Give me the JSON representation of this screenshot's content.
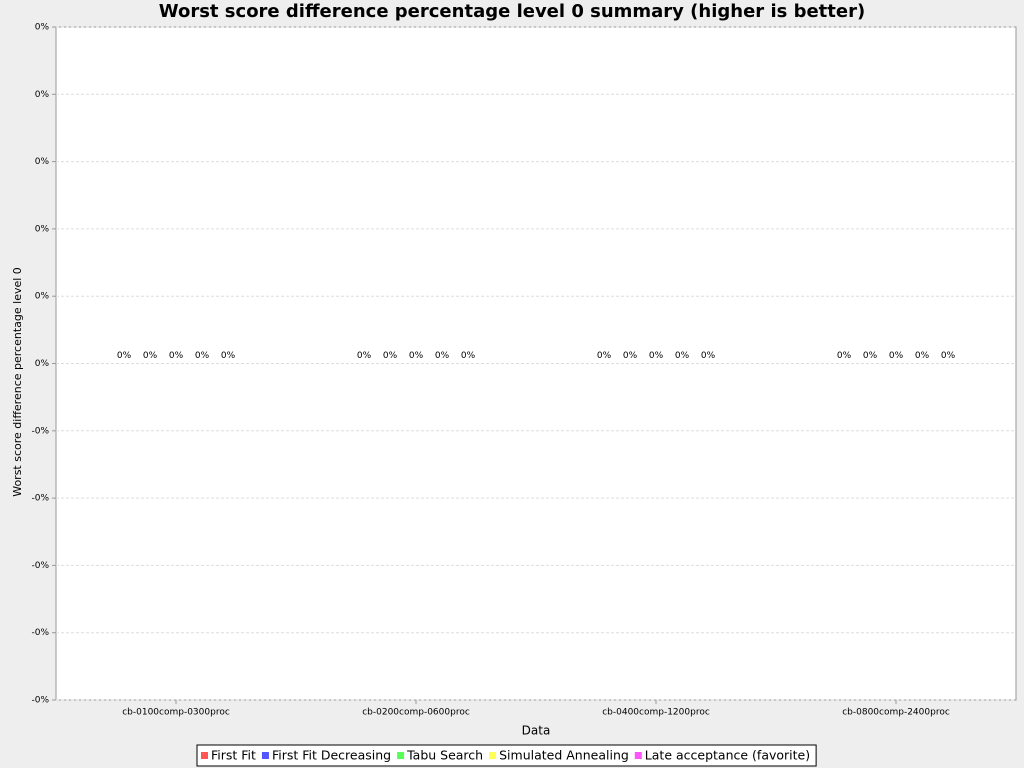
{
  "chart_data": {
    "type": "bar",
    "title": "Worst score difference percentage level 0 summary (higher is better)",
    "x_label": "Data",
    "y_label": "Worst score difference percentage level 0",
    "categories": [
      "cb-0100comp-0300proc",
      "cb-0200comp-0600proc",
      "cb-0400comp-1200proc",
      "cb-0800comp-2400proc"
    ],
    "series": [
      {
        "name": "First Fit",
        "color": "#ff5555",
        "values": [
          0,
          0,
          0,
          0
        ],
        "value_labels": [
          "0%",
          "0%",
          "0%",
          "0%"
        ]
      },
      {
        "name": "First Fit Decreasing",
        "color": "#5555ff",
        "values": [
          0,
          0,
          0,
          0
        ],
        "value_labels": [
          "0%",
          "0%",
          "0%",
          "0%"
        ]
      },
      {
        "name": "Tabu Search",
        "color": "#55ff55",
        "values": [
          0,
          0,
          0,
          0
        ],
        "value_labels": [
          "0%",
          "0%",
          "0%",
          "0%"
        ]
      },
      {
        "name": "Simulated Annealing",
        "color": "#ffff55",
        "values": [
          0,
          0,
          0,
          0
        ],
        "value_labels": [
          "0%",
          "0%",
          "0%",
          "0%"
        ]
      },
      {
        "name": "Late acceptance (favorite)",
        "color": "#ff55ff",
        "values": [
          0,
          0,
          0,
          0
        ],
        "value_labels": [
          "0%",
          "0%",
          "0%",
          "0%"
        ]
      }
    ],
    "ylim": [
      -0.0005,
      0.0005
    ],
    "yticks": [
      {
        "value": 0.0005,
        "label": "0%"
      },
      {
        "value": 0.0004,
        "label": "0%"
      },
      {
        "value": 0.0003,
        "label": "0%"
      },
      {
        "value": 0.0002,
        "label": "0%"
      },
      {
        "value": 0.0001,
        "label": "0%"
      },
      {
        "value": 0,
        "label": "0%"
      },
      {
        "value": -0.0001,
        "label": "-0%"
      },
      {
        "value": -0.0002,
        "label": "-0%"
      },
      {
        "value": -0.0003,
        "label": "-0%"
      },
      {
        "value": -0.0004,
        "label": "-0%"
      },
      {
        "value": -0.0005,
        "label": "-0%"
      }
    ],
    "grid": true,
    "legend": "bottom"
  }
}
